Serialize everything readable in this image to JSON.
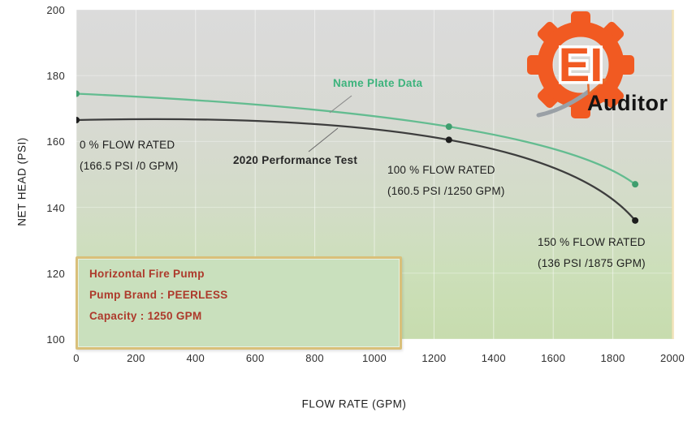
{
  "logo": {
    "monogram": "EI",
    "wordmark": "Auditor",
    "accent_color": "#f15a22"
  },
  "info_box": {
    "lines": [
      "Horizontal Fire Pump",
      "Pump Brand : PEERLESS",
      "Capacity : 1250 GPM"
    ],
    "text_color": "#ad392b",
    "border_color": "#d9c07a",
    "fill_color": "#c9e0bd"
  },
  "chart_data": {
    "type": "line",
    "title": "",
    "xlabel": "FLOW RATE (GPM)",
    "ylabel": "NET HEAD (PSI)",
    "xlim": [
      0,
      2000
    ],
    "ylim": [
      100,
      200
    ],
    "x_ticks": [
      0,
      200,
      400,
      600,
      800,
      1000,
      1200,
      1400,
      1600,
      1800,
      2000
    ],
    "y_ticks": [
      100,
      120,
      140,
      160,
      180,
      200
    ],
    "grid": true,
    "legend_position": "inline-labels",
    "background": "gray-to-green vertical gradient",
    "series": [
      {
        "name": "Name Plate Data",
        "color": "#63bc90",
        "marker_color": "#3f9e6e",
        "x": [
          0,
          1250,
          1875
        ],
        "y": [
          174.5,
          164.5,
          147
        ]
      },
      {
        "name": "2020 Performance Test",
        "color": "#3d3d3d",
        "marker_color": "#1d1d1d",
        "x": [
          0,
          1250,
          1875
        ],
        "y": [
          166.5,
          160.5,
          136
        ]
      }
    ],
    "annotations": [
      {
        "title": "0 % FLOW RATED",
        "detail": "(166.5 PSI /0 GPM)"
      },
      {
        "title": "100 % FLOW RATED",
        "detail": "(160.5 PSI /1250 GPM)"
      },
      {
        "title": "150 % FLOW RATED",
        "detail": "(136 PSI /1875 GPM)"
      }
    ]
  }
}
